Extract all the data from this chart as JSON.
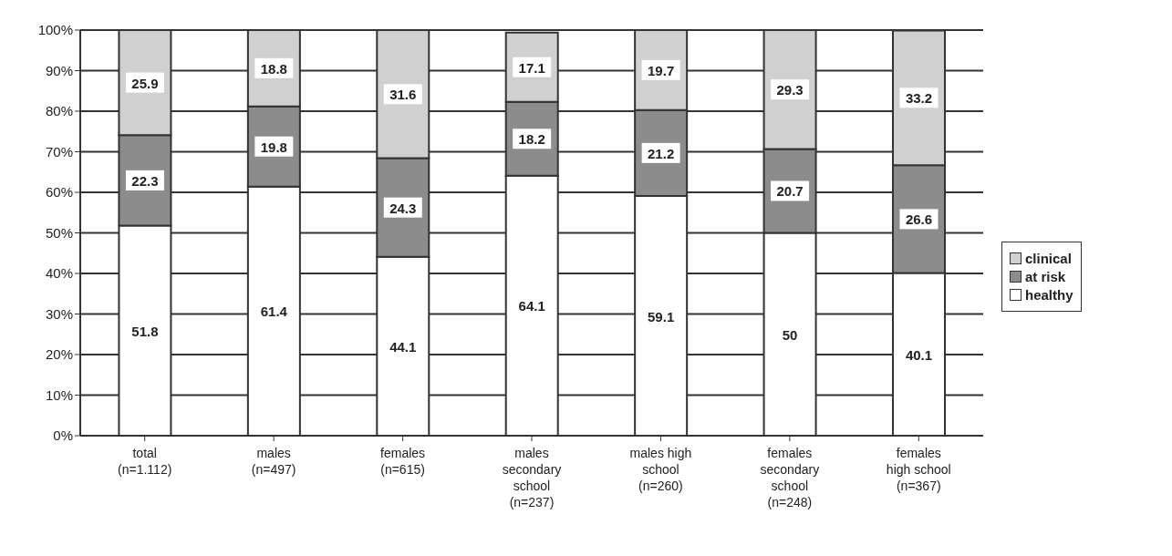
{
  "chart_data": {
    "type": "bar",
    "stacked": true,
    "categories": [
      "total\n(n=1.112)",
      "males\n(n=497)",
      "females\n(n=615)",
      "males\nsecondary\nschool\n(n=237)",
      "males high\nschool\n(n=260)",
      "females\nsecondary\nschool\n(n=248)",
      "females\nhigh school\n(n=367)"
    ],
    "series": [
      {
        "name": "healthy",
        "color": "#ffffff",
        "values": [
          51.8,
          61.4,
          44.1,
          64.1,
          59.1,
          50,
          40.1
        ]
      },
      {
        "name": "at risk",
        "color": "#8c8c8c",
        "values": [
          22.3,
          19.8,
          24.3,
          18.2,
          21.2,
          20.7,
          26.6
        ]
      },
      {
        "name": "clinical",
        "color": "#d0d0d0",
        "values": [
          25.9,
          18.8,
          31.6,
          17.1,
          19.7,
          29.3,
          33.2
        ]
      }
    ],
    "ylim": [
      0,
      100
    ],
    "yticks": [
      {
        "value": 0,
        "label": "0%"
      },
      {
        "value": 10,
        "label": "10%"
      },
      {
        "value": 20,
        "label": "20%"
      },
      {
        "value": 30,
        "label": "30%"
      },
      {
        "value": 40,
        "label": "40%"
      },
      {
        "value": 50,
        "label": "50%"
      },
      {
        "value": 60,
        "label": "60%"
      },
      {
        "value": 70,
        "label": "70%"
      },
      {
        "value": 80,
        "label": "80%"
      },
      {
        "value": 90,
        "label": "90%"
      },
      {
        "value": 100,
        "label": "100%"
      }
    ],
    "grid": "y",
    "legend": "right",
    "data_labels": true
  }
}
